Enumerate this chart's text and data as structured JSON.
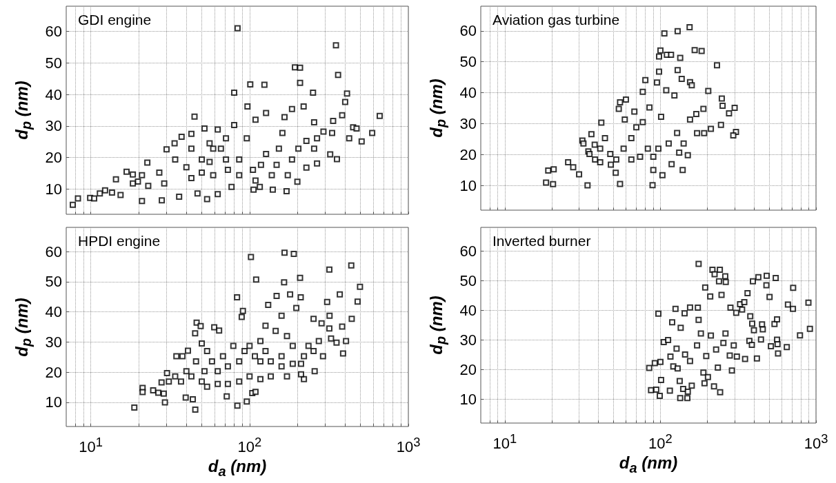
{
  "chart_data": [
    {
      "type": "scatter",
      "title": "GDI engine",
      "ylabel": "d$_{p}$ (nm)",
      "log": "x",
      "grid": true,
      "marker": "square",
      "tick_labels": "y",
      "xlim": [
        7,
        1000
      ],
      "ylim": [
        2,
        68
      ],
      "yticks": [
        10,
        20,
        30,
        40,
        50,
        60
      ],
      "xticks": [
        {
          "value": 8,
          "label": null
        },
        {
          "value": 9,
          "label": null
        },
        {
          "value": 10,
          "label": null
        },
        {
          "value": 20,
          "label": null
        },
        {
          "value": 30,
          "label": null
        },
        {
          "value": 40,
          "label": null
        },
        {
          "value": 50,
          "label": null
        },
        {
          "value": 60,
          "label": null
        },
        {
          "value": 70,
          "label": null
        },
        {
          "value": 80,
          "label": null
        },
        {
          "value": 90,
          "label": null
        },
        {
          "value": 100,
          "label": null
        },
        {
          "value": 200,
          "label": null
        },
        {
          "value": 300,
          "label": null
        },
        {
          "value": 400,
          "label": null
        },
        {
          "value": 500,
          "label": null
        },
        {
          "value": 600,
          "label": null
        },
        {
          "value": 700,
          "label": null
        },
        {
          "value": 800,
          "label": null
        },
        {
          "value": 900,
          "label": null
        },
        {
          "value": 1000,
          "label": null
        }
      ],
      "series": [
        {
          "color": "#000000",
          "x": [
            7.7,
            8.3,
            9.9,
            10.5,
            11.4,
            12.3,
            13.6,
            14.4,
            15.4,
            16.8,
            18.4,
            19.8,
            22.7,
            28,
            30,
            33.7,
            37.3,
            45,
            43,
            52,
            63,
            80,
            84,
            101,
            124,
            97,
            193,
            208,
            208,
            251,
            350,
            361,
            411,
            400,
            383,
            336,
            331,
            424,
            449,
            472,
            508,
            592,
            660,
            322,
            355,
            266,
            228,
            200,
            171,
            140,
            116,
            106,
            77,
            63,
            54,
            47,
            36,
            21,
            40,
            50,
            59,
            71,
            86,
            105,
            127,
            153,
            185,
            228,
            266,
            292,
            255,
            219,
            185,
            166,
            127,
            109,
            80,
            66,
            56,
            43,
            34,
            27,
            29,
            23,
            21,
            18.4,
            73,
            86,
            109,
            138,
            174,
            148,
            50,
            43,
            59,
            118,
            161,
            96,
            71,
            56,
            203,
            255
          ],
          "values": [
            5,
            7,
            7.2,
            7,
            8.6,
            9.6,
            8.9,
            13.1,
            8.1,
            15.5,
            14.6,
            12.4,
            18.4,
            6.4,
            22.6,
            24.5,
            26.6,
            33,
            27.5,
            29.2,
            28.9,
            40.6,
            61,
            43.2,
            43.1,
            36.2,
            48.6,
            48.5,
            43.7,
            40.6,
            55.6,
            46.2,
            40.3,
            37.6,
            33.4,
            31.6,
            27.8,
            26.1,
            29.6,
            29.2,
            25.1,
            27.8,
            33.2,
            21,
            19.5,
            18.1,
            16.8,
            12.3,
            9.3,
            9.8,
            10.7,
            9.8,
            10.7,
            8.4,
            6.8,
            8.6,
            7.6,
            6.2,
            16.9,
            19.4,
            22.8,
            26.1,
            19.4,
            16.1,
            21.1,
            22.8,
            19.4,
            25.3,
            26.1,
            28.2,
            31.2,
            36.2,
            35.4,
            32.8,
            34.1,
            32,
            30.3,
            22.8,
            24.5,
            22.8,
            19.4,
            15.2,
            11.8,
            11,
            14.4,
            11.8,
            16.1,
            14.4,
            12.7,
            14.4,
            14.4,
            17.7,
            15.2,
            13.5,
            14.4,
            17.7,
            27.8,
            26.1,
            19.4,
            18.6,
            22.8,
            22.8
          ]
        }
      ]
    },
    {
      "type": "scatter",
      "title": "Aviation gas turbine",
      "ylabel": "d$_{p}$ (nm)",
      "log": "x",
      "grid": true,
      "marker": "square",
      "tick_labels": "y",
      "xlim": [
        7,
        1000
      ],
      "ylim": [
        2,
        68
      ],
      "yticks": [
        10,
        20,
        30,
        40,
        50,
        60
      ],
      "xticks": [
        {
          "value": 8,
          "label": null
        },
        {
          "value": 9,
          "label": null
        },
        {
          "value": 10,
          "label": null
        },
        {
          "value": 20,
          "label": null
        },
        {
          "value": 30,
          "label": null
        },
        {
          "value": 40,
          "label": null
        },
        {
          "value": 50,
          "label": null
        },
        {
          "value": 60,
          "label": null
        },
        {
          "value": 70,
          "label": null
        },
        {
          "value": 80,
          "label": null
        },
        {
          "value": 90,
          "label": null
        },
        {
          "value": 100,
          "label": null
        },
        {
          "value": 200,
          "label": null
        },
        {
          "value": 300,
          "label": null
        },
        {
          "value": 400,
          "label": null
        },
        {
          "value": 500,
          "label": null
        },
        {
          "value": 600,
          "label": null
        },
        {
          "value": 700,
          "label": null
        },
        {
          "value": 800,
          "label": null
        },
        {
          "value": 900,
          "label": null
        },
        {
          "value": 1000,
          "label": null
        }
      ],
      "series": [
        {
          "color": "#000000",
          "x": [
            18.4,
            19,
            20.6,
            20.4,
            25.5,
            27.5,
            30,
            31.5,
            34,
            34.4,
            36,
            37.8,
            41.7,
            44,
            47.6,
            51.6,
            55,
            55,
            60,
            54,
            59,
            68,
            77,
            80,
            85,
            89,
            95,
            98,
            100,
            98,
            106,
            110,
            117,
            129,
            134,
            154,
            129,
            137,
            166,
            184,
            155,
            159,
            203,
            231,
            248,
            251,
            276,
            300,
            306,
            294,
            245,
            211,
            191,
            172,
            155,
            150,
            139,
            132,
            118,
            103,
            97,
            90,
            101,
            109,
            123,
            113,
            83,
            77,
            70,
            65,
            58,
            52,
            48,
            41,
            41,
            38,
            35,
            32,
            65,
            74,
            90,
            141,
            128,
            170,
            189
          ],
          "values": [
            10.9,
            14.8,
            15.2,
            10.4,
            17.5,
            15.9,
            13.6,
            24.5,
            10,
            21,
            26.6,
            23.2,
            30.3,
            25.3,
            20.2,
            14.1,
            10.5,
            36.9,
            37.8,
            34.8,
            31.3,
            33.9,
            40.3,
            44.1,
            35.2,
            10.1,
            43.3,
            46.8,
            53.7,
            51.7,
            59.2,
            52.3,
            52.3,
            59.9,
            51.3,
            61.2,
            47.3,
            44.5,
            53.8,
            53.5,
            43.4,
            42.4,
            40.6,
            48.9,
            38.1,
            35.8,
            33.3,
            35.1,
            27.3,
            26.2,
            29.6,
            28.3,
            26.9,
            26.9,
            31.3,
            19.8,
            15,
            20.6,
            16.9,
            13.3,
            21.9,
            15,
            32.2,
            40.8,
            39.1,
            23.6,
            21.9,
            30.5,
            28.8,
            25.3,
            21.9,
            18.4,
            16.7,
            17.5,
            21.9,
            18.4,
            20.2,
            23.6,
            18.4,
            19.3,
            19.3,
            23.6,
            27,
            33.1,
            34.8
          ]
        }
      ]
    },
    {
      "type": "scatter",
      "title": "HPDI engine",
      "xlabel": "d$_{a}$ (nm)",
      "ylabel": "d$_{p}$ (nm)",
      "log": "x",
      "grid": true,
      "marker": "square",
      "xlim": [
        7,
        1000
      ],
      "ylim": [
        2,
        68
      ],
      "yticks": [
        10,
        20,
        30,
        40,
        50,
        60
      ],
      "xticks": [
        {
          "value": 8,
          "label": null
        },
        {
          "value": 9,
          "label": null
        },
        {
          "value": 10,
          "label": "10$^{1}$"
        },
        {
          "value": 20,
          "label": null
        },
        {
          "value": 30,
          "label": null
        },
        {
          "value": 40,
          "label": null
        },
        {
          "value": 50,
          "label": null
        },
        {
          "value": 60,
          "label": null
        },
        {
          "value": 70,
          "label": null
        },
        {
          "value": 80,
          "label": null
        },
        {
          "value": 90,
          "label": null
        },
        {
          "value": 100,
          "label": "10$^{2}$"
        },
        {
          "value": 200,
          "label": null
        },
        {
          "value": 300,
          "label": null
        },
        {
          "value": 400,
          "label": null
        },
        {
          "value": 500,
          "label": null
        },
        {
          "value": 600,
          "label": null
        },
        {
          "value": 700,
          "label": null
        },
        {
          "value": 800,
          "label": null
        },
        {
          "value": 900,
          "label": null
        },
        {
          "value": 1000,
          "label": "10$^{3}$"
        }
      ],
      "series": [
        {
          "color": "#000000",
          "x": [
            18.8,
            21.2,
            21.2,
            24.7,
            26.6,
            28.8,
            29.3,
            30.2,
            27.9,
            34.6,
            37.8,
            40.9,
            39.6,
            43.9,
            45.5,
            46.4,
            49.2,
            45.4,
            59.9,
            64.3,
            71.8,
            83.4,
            90.8,
            89.2,
            83.8,
            96,
            102,
            110,
            131,
            148,
            166,
            190,
            165,
            180,
            208,
            210,
            197,
            159,
            318,
            308,
            370,
            437,
            496,
            479,
            440,
            405,
            388,
            383,
            353,
            257,
            220,
            211,
            104,
            109,
            319,
            318,
            253,
            284,
            273,
            235,
            220,
            211,
            187,
            172,
            146,
            126,
            117,
            126,
            136,
            159,
            172,
            187,
            108,
            100,
            93,
            86,
            79,
            73,
            68,
            63,
            58,
            54,
            52,
            50,
            46,
            43,
            40,
            37,
            34,
            31,
            54,
            63,
            73,
            86,
            100,
            117,
            136,
            159,
            253,
            290,
            326,
            50,
            117
          ],
          "values": [
            8.3,
            14.8,
            13.4,
            14,
            13.2,
            12.9,
            10,
            19.7,
            16.6,
            25.3,
            25.3,
            27.1,
            11.6,
            11,
            7.6,
            36.4,
            35.3,
            32.9,
            34.9,
            33.8,
            12,
            44.8,
            40.3,
            38.3,
            8.9,
            10.3,
            58.2,
            50.7,
            42.3,
            45.3,
            59.6,
            59.2,
            49.8,
            45.8,
            51.3,
            44.8,
            41.3,
            38.7,
            54,
            43.3,
            45.8,
            55.4,
            48.3,
            43.4,
            37.7,
            30.3,
            26.2,
            35.1,
            29.8,
            20.3,
            17.7,
            19.3,
            13.1,
            13.5,
            38.7,
            34.5,
            37.7,
            36.2,
            30.3,
            28.7,
            25.3,
            22.8,
            28.7,
            32,
            33.7,
            35.4,
            30.3,
            27,
            23.6,
            21.9,
            18.6,
            22.8,
            25.3,
            28.7,
            27,
            23.6,
            28.7,
            21.9,
            25.3,
            20.3,
            23.6,
            27,
            20.3,
            16.9,
            23.6,
            18.6,
            20.3,
            16.9,
            18.6,
            16.9,
            15.2,
            16.1,
            16.1,
            16.9,
            18.6,
            17.7,
            18.6,
            25.3,
            27,
            25.3,
            31.2,
            29.5,
            23.6
          ]
        }
      ]
    },
    {
      "type": "scatter",
      "title": "Inverted burner",
      "xlabel": "d$_{a}$ (nm)",
      "ylabel": "d$_{p}$ (nm)",
      "log": "x",
      "grid": true,
      "marker": "square",
      "xlim": [
        7,
        1000
      ],
      "ylim": [
        2,
        68
      ],
      "yticks": [
        10,
        20,
        30,
        40,
        50,
        60
      ],
      "xticks": [
        {
          "value": 8,
          "label": null
        },
        {
          "value": 9,
          "label": null
        },
        {
          "value": 10,
          "label": "10$^{1}$"
        },
        {
          "value": 20,
          "label": null
        },
        {
          "value": 30,
          "label": null
        },
        {
          "value": 40,
          "label": null
        },
        {
          "value": 50,
          "label": null
        },
        {
          "value": 60,
          "label": null
        },
        {
          "value": 70,
          "label": null
        },
        {
          "value": 80,
          "label": null
        },
        {
          "value": 90,
          "label": null
        },
        {
          "value": 100,
          "label": "10$^{2}$"
        },
        {
          "value": 200,
          "label": null
        },
        {
          "value": 300,
          "label": null
        },
        {
          "value": 400,
          "label": null
        },
        {
          "value": 500,
          "label": null
        },
        {
          "value": 600,
          "label": null
        },
        {
          "value": 700,
          "label": null
        },
        {
          "value": 800,
          "label": null
        },
        {
          "value": 900,
          "label": null
        },
        {
          "value": 1000,
          "label": "10$^{3}$"
        }
      ],
      "series": [
        {
          "color": "#000000",
          "x": [
            84.7,
            87,
            92,
            94,
            97,
            99,
            100,
            101,
            105,
            112,
            115,
            116,
            119,
            121,
            125,
            127,
            129,
            133,
            134,
            135,
            140,
            143,
            144,
            149,
            150,
            155,
            155,
            159,
            172,
            174,
            176,
            176,
            182,
            189,
            192,
            194,
            197,
            202,
            209,
            211,
            216,
            221,
            223,
            228,
            234,
            238,
            241,
            242,
            247,
            254,
            261,
            262,
            279,
            263,
            282,
            288,
            296,
            307,
            310,
            325,
            335,
            346,
            350,
            373,
            363,
            378,
            387,
            389,
            393,
            399,
            417,
            426,
            443,
            450,
            455,
            480,
            482,
            503,
            513,
            541,
            562,
            551,
            570,
            649,
            660,
            713,
            711,
            789,
            894,
            914,
            562,
            566
          ],
          "values": [
            20.6,
            13.1,
            22.2,
            13.3,
            38.9,
            11.2,
            22.6,
            16.5,
            29.3,
            30,
            12.9,
            24.4,
            36,
            21.1,
            40.5,
            27.1,
            20.4,
            16.2,
            10.4,
            34.1,
            13.5,
            39,
            25.1,
            10.4,
            12.6,
            22.9,
            41,
            14.6,
            28.2,
            40.9,
            55.7,
            36.8,
            32.2,
            19,
            15.4,
            47.7,
            24.6,
            17.5,
            44.7,
            31.5,
            53.7,
            14.4,
            52.2,
            26.8,
            20.7,
            49.8,
            53.7,
            12.4,
            45.2,
            29,
            51.5,
            32.2,
            24.8,
            49.6,
            40.9,
            19.7,
            28.2,
            39.2,
            24.4,
            42.1,
            40.3,
            42.8,
            23.6,
            29.7,
            45.8,
            38,
            28.4,
            35.5,
            49.8,
            33.3,
            23.8,
            51.2,
            30.2,
            35.3,
            33.6,
            48.5,
            51.7,
            44.5,
            27.9,
            35.4,
            30.1,
            50.9,
            25.5,
            27.6,
            42,
            47.6,
            40.5,
            31.6,
            42.6,
            33.8,
            37,
            28.6
          ]
        }
      ]
    }
  ]
}
